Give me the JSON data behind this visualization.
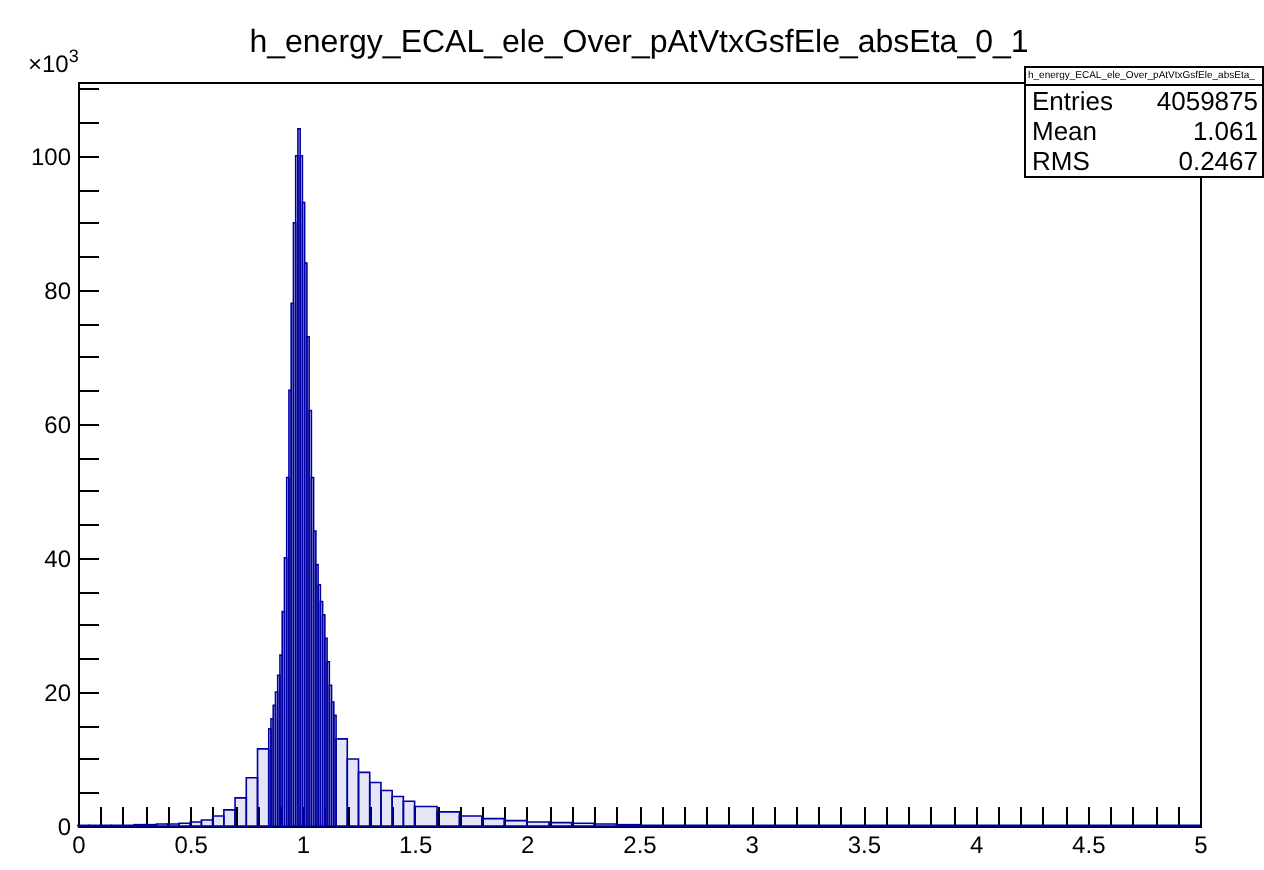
{
  "chart_data": {
    "type": "histogram",
    "title": "h_energy_ECAL_ele_Over_pAtVtxGsfEle_absEta_0_1",
    "color": "#0000a0",
    "bins": [
      0,
      0.05,
      0.1,
      0.15,
      0.2,
      0.25,
      0.3,
      0.35,
      0.4,
      0.45,
      0.5,
      0.55,
      0.6,
      0.65,
      0.7,
      0.75,
      0.8,
      0.85,
      0.86,
      0.87,
      0.88,
      0.89,
      0.9,
      0.91,
      0.92,
      0.93,
      0.94,
      0.95,
      0.96,
      0.97,
      0.98,
      0.99,
      1.0,
      1.01,
      1.02,
      1.03,
      1.04,
      1.05,
      1.06,
      1.07,
      1.08,
      1.09,
      1.1,
      1.11,
      1.12,
      1.13,
      1.14,
      1.15,
      1.2,
      1.25,
      1.3,
      1.35,
      1.4,
      1.45,
      1.5,
      1.6,
      1.7,
      1.8,
      1.9,
      2.0,
      2.1,
      2.2,
      2.3,
      2.4,
      2.5,
      5.0
    ],
    "values": [
      0.1,
      0.1,
      0.1,
      0.1,
      0.1,
      0.2,
      0.2,
      0.3,
      0.3,
      0.4,
      0.6,
      0.9,
      1.5,
      2.4,
      4.2,
      7.2,
      11.5,
      14.5,
      16,
      18,
      20,
      22.5,
      25.5,
      32,
      40,
      52,
      65,
      78,
      90,
      100,
      104,
      100,
      93,
      84,
      73,
      62,
      52,
      44,
      39,
      36,
      33.5,
      31.5,
      28,
      24.5,
      21,
      18.5,
      16.5,
      13,
      10,
      8,
      6.5,
      5.3,
      4.4,
      3.7,
      2.9,
      2.1,
      1.5,
      1.1,
      0.8,
      0.6,
      0.5,
      0.4,
      0.3,
      0.2,
      0.1
    ],
    "xlim": [
      0,
      5
    ],
    "xticks": [
      0,
      {
        "value": 0.1,
        "label": null
      },
      {
        "value": 0.2,
        "label": null
      },
      {
        "value": 0.3,
        "label": null
      },
      {
        "value": 0.4,
        "label": null
      },
      0.5,
      {
        "value": 0.6,
        "label": null
      },
      {
        "value": 0.7,
        "label": null
      },
      {
        "value": 0.8,
        "label": null
      },
      {
        "value": 0.9,
        "label": null
      },
      1,
      {
        "value": 1.1,
        "label": null
      },
      {
        "value": 1.2,
        "label": null
      },
      {
        "value": 1.3,
        "label": null
      },
      {
        "value": 1.4,
        "label": null
      },
      1.5,
      {
        "value": 1.6,
        "label": null
      },
      {
        "value": 1.7,
        "label": null
      },
      {
        "value": 1.8,
        "label": null
      },
      {
        "value": 1.9,
        "label": null
      },
      2,
      {
        "value": 2.1,
        "label": null
      },
      {
        "value": 2.2,
        "label": null
      },
      {
        "value": 2.3,
        "label": null
      },
      {
        "value": 2.4,
        "label": null
      },
      2.5,
      {
        "value": 2.6,
        "label": null
      },
      {
        "value": 2.7,
        "label": null
      },
      {
        "value": 2.8,
        "label": null
      },
      {
        "value": 2.9,
        "label": null
      },
      3,
      {
        "value": 3.1,
        "label": null
      },
      {
        "value": 3.2,
        "label": null
      },
      {
        "value": 3.3,
        "label": null
      },
      {
        "value": 3.4,
        "label": null
      },
      3.5,
      {
        "value": 3.6,
        "label": null
      },
      {
        "value": 3.7,
        "label": null
      },
      {
        "value": 3.8,
        "label": null
      },
      {
        "value": 3.9,
        "label": null
      },
      4,
      {
        "value": 4.1,
        "label": null
      },
      {
        "value": 4.2,
        "label": null
      },
      {
        "value": 4.3,
        "label": null
      },
      {
        "value": 4.4,
        "label": null
      },
      4.5,
      {
        "value": 4.6,
        "label": null
      },
      {
        "value": 4.7,
        "label": null
      },
      {
        "value": 4.8,
        "label": null
      },
      {
        "value": 4.9,
        "label": null
      },
      5
    ],
    "ylim": [
      0,
      111
    ],
    "yticks": [
      0,
      {
        "value": 5,
        "label": null
      },
      {
        "value": 10,
        "label": null
      },
      {
        "value": 15,
        "label": null
      },
      20,
      {
        "value": 25,
        "label": null
      },
      {
        "value": 30,
        "label": null
      },
      {
        "value": 35,
        "label": null
      },
      40,
      {
        "value": 45,
        "label": null
      },
      {
        "value": 50,
        "label": null
      },
      {
        "value": 55,
        "label": null
      },
      60,
      {
        "value": 65,
        "label": null
      },
      {
        "value": 70,
        "label": null
      },
      {
        "value": 75,
        "label": null
      },
      80,
      {
        "value": 85,
        "label": null
      },
      {
        "value": 90,
        "label": null
      },
      {
        "value": 95,
        "label": null
      },
      100,
      {
        "value": 105,
        "label": null
      },
      {
        "value": 110,
        "label": null
      }
    ],
    "annotations": [
      "×10$^{3}$",
      "h_energy_ECAL_ele_Over_pAtVtxGsfEle_absEta_",
      "Entries",
      "4059875",
      "Mean",
      "1.061",
      "RMS",
      "0.2467"
    ]
  }
}
